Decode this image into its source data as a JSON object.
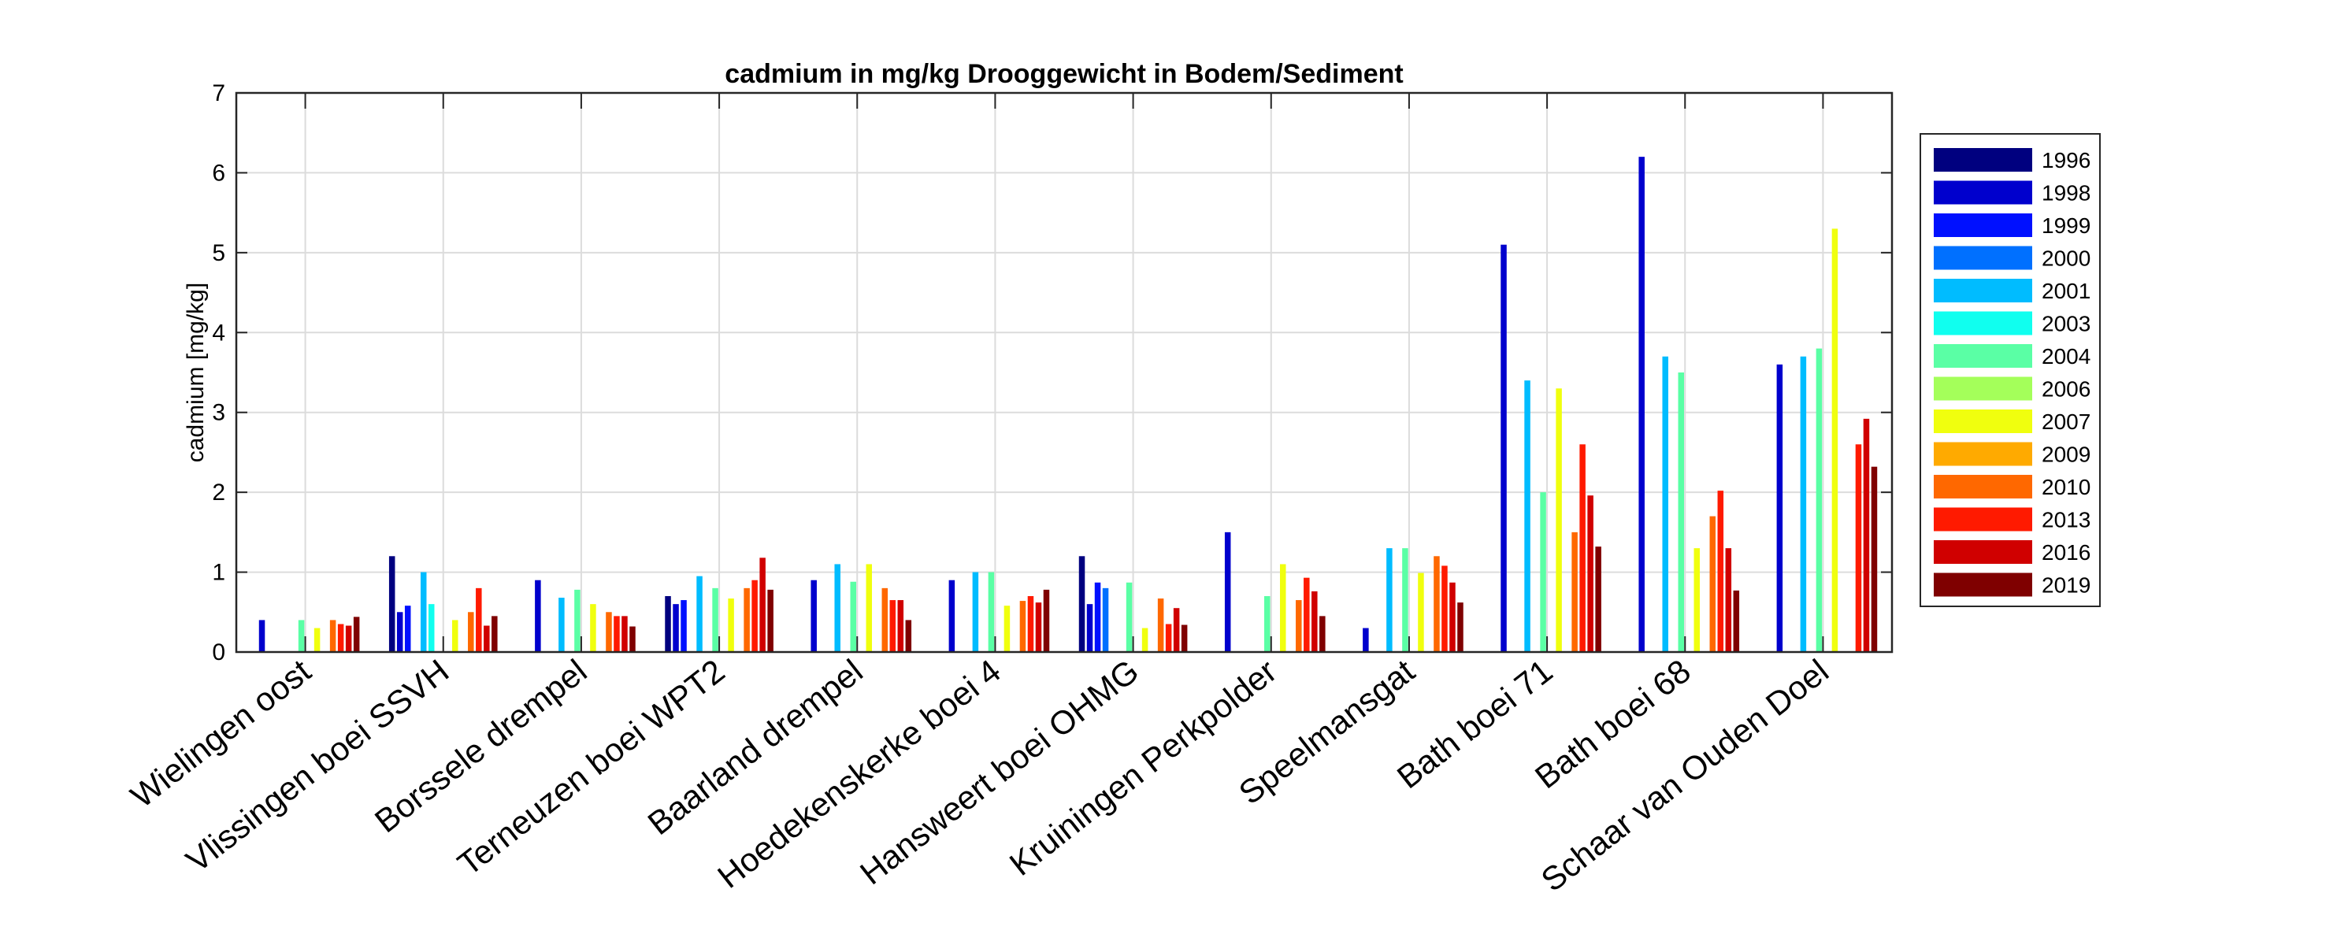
{
  "chart_data": {
    "type": "bar",
    "title": "cadmium in mg/kg Drooggewicht in Bodem/Sediment",
    "ylabel": "cadmium [mg/kg]",
    "xlabel": "",
    "ylim": [
      0,
      7
    ],
    "yticks": [
      "0",
      "1",
      "2",
      "3",
      "4",
      "5",
      "6",
      "7"
    ],
    "grid": true,
    "legend_position": "right",
    "categories": [
      "Wielingen oost",
      "Vlissingen boei SSVH",
      "Borssele drempel",
      "Terneuzen boei WPT2",
      "Baarland drempel",
      "Hoedekenskerke boei 4",
      "Hansweert boei OHMG",
      "Kruiningen Perkpolder",
      "Speelmansgat",
      "Bath boei 71",
      "Bath boei 68",
      "Schaar van Ouden Doel"
    ],
    "series": [
      {
        "name": "1996",
        "color": "#00007f",
        "values": [
          null,
          1.2,
          null,
          0.7,
          null,
          null,
          1.2,
          null,
          null,
          null,
          null,
          null
        ]
      },
      {
        "name": "1998",
        "color": "#0000cd",
        "values": [
          0.4,
          0.5,
          0.9,
          0.6,
          0.9,
          0.9,
          0.6,
          1.5,
          0.3,
          5.1,
          6.2,
          3.6
        ]
      },
      {
        "name": "1999",
        "color": "#0010ff",
        "values": [
          null,
          0.58,
          null,
          0.65,
          null,
          null,
          0.87,
          null,
          null,
          null,
          null,
          null
        ]
      },
      {
        "name": "2000",
        "color": "#0070ff",
        "values": [
          null,
          null,
          null,
          null,
          null,
          null,
          0.8,
          null,
          null,
          null,
          null,
          null
        ]
      },
      {
        "name": "2001",
        "color": "#00bcff",
        "values": [
          null,
          1.0,
          0.68,
          0.95,
          1.1,
          1.0,
          null,
          null,
          1.3,
          3.4,
          3.7,
          3.7
        ]
      },
      {
        "name": "2003",
        "color": "#10ffef",
        "values": [
          null,
          0.6,
          null,
          null,
          null,
          null,
          null,
          null,
          null,
          null,
          null,
          null
        ]
      },
      {
        "name": "2004",
        "color": "#5affa5",
        "values": [
          0.4,
          null,
          0.78,
          0.8,
          0.88,
          1.0,
          0.87,
          0.7,
          1.3,
          2.0,
          3.5,
          3.8
        ]
      },
      {
        "name": "2006",
        "color": "#a4ff5a",
        "values": [
          null,
          null,
          null,
          null,
          null,
          null,
          null,
          null,
          null,
          null,
          null,
          null
        ]
      },
      {
        "name": "2007",
        "color": "#f0ff0e",
        "values": [
          0.3,
          0.4,
          0.6,
          0.67,
          1.1,
          0.58,
          0.3,
          1.1,
          0.99,
          3.3,
          1.3,
          5.3
        ]
      },
      {
        "name": "2009",
        "color": "#ffaa00",
        "values": [
          null,
          null,
          null,
          null,
          null,
          null,
          null,
          null,
          null,
          null,
          null,
          null
        ]
      },
      {
        "name": "2010",
        "color": "#ff6800",
        "values": [
          0.4,
          0.5,
          0.5,
          0.8,
          0.8,
          0.64,
          0.67,
          0.65,
          1.2,
          1.5,
          1.7,
          null
        ]
      },
      {
        "name": "2013",
        "color": "#ff1a00",
        "values": [
          0.35,
          0.8,
          0.45,
          0.9,
          0.65,
          0.7,
          0.35,
          0.93,
          1.08,
          2.6,
          2.02,
          2.6
        ]
      },
      {
        "name": "2016",
        "color": "#d00000",
        "values": [
          0.33,
          0.33,
          0.45,
          1.18,
          0.65,
          0.62,
          0.55,
          0.76,
          0.87,
          1.96,
          1.3,
          2.92
        ]
      },
      {
        "name": "2019",
        "color": "#7f0000",
        "values": [
          0.44,
          0.45,
          0.32,
          0.78,
          0.4,
          0.78,
          0.34,
          0.45,
          0.62,
          1.32,
          0.77,
          2.32
        ]
      }
    ],
    "extra_bars_note_free": null
  }
}
